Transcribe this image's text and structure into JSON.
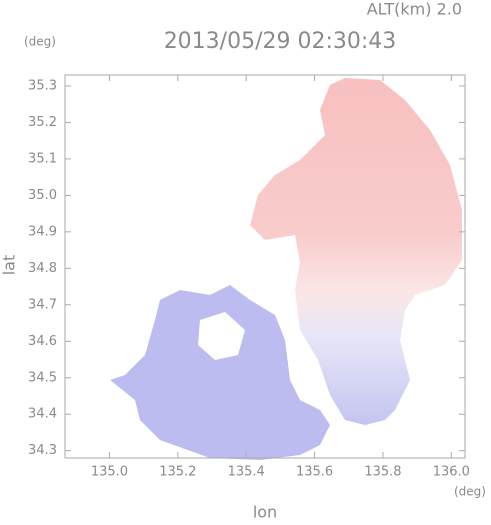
{
  "chart_data": {
    "type": "map",
    "title": "2013/05/29 02:30:43",
    "annotation": "ALT(km) 2.0",
    "x_label": "lon",
    "y_label": "lat",
    "x_unit": "(deg)",
    "y_unit": "(deg)",
    "xlim": [
      134.87,
      136.04
    ],
    "xticks": [
      {
        "value": 135,
        "label": "135.0"
      },
      135.2,
      135.4,
      135.6,
      135.8,
      {
        "value": 136,
        "label": "136.0"
      }
    ],
    "ylim": [
      34.28,
      35.33
    ],
    "yticks": [
      34.3,
      34.4,
      34.5,
      34.6,
      34.7,
      34.8,
      34.9,
      {
        "value": 35,
        "label": "35.0"
      },
      35.1,
      35.2,
      35.3
    ]
  }
}
